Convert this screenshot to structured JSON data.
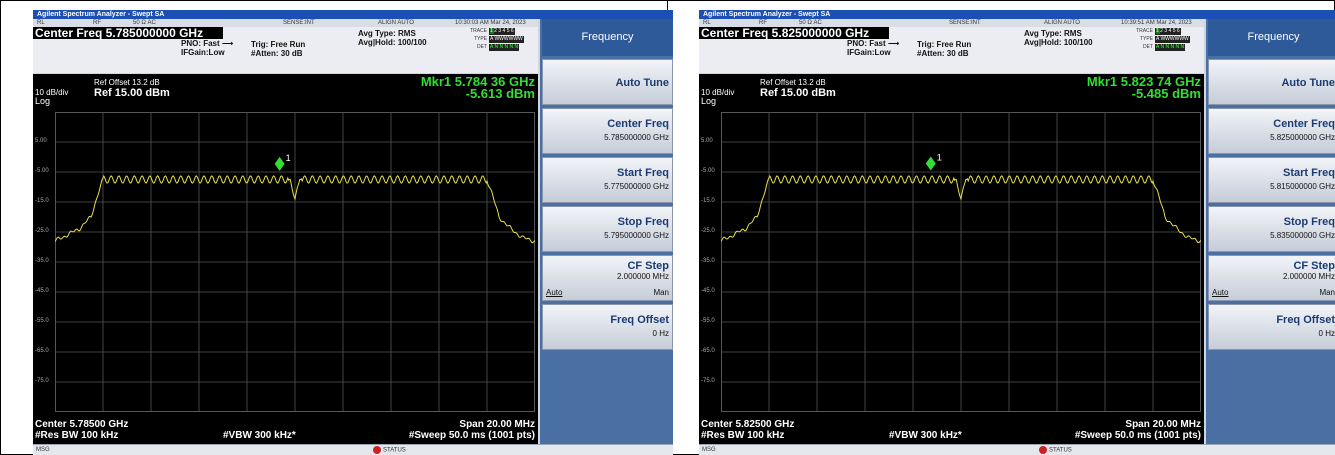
{
  "colors": {
    "trace": "#e8e04a",
    "marker": "#33dd33",
    "grid": "#555555",
    "screen_bg": "#000000"
  },
  "chart_scale": {
    "ref_level_dbm": 15,
    "db_per_div": 10,
    "divisions": 10
  },
  "panels": [
    {
      "window_title": "Agilent Spectrum Analyzer - Swept SA",
      "toolbar": {
        "rl": "RL",
        "rf": "RF",
        "impedance": "50 Ω AC",
        "sense": "SENSE:INT",
        "align": "ALIGN AUTO",
        "timestamp": "10:30:03 AM Mar 24, 2023"
      },
      "center_freq_label": "Center Freq 5.785000000 GHz",
      "pno": "PNO: Fast ⟶",
      "ifgain": "IFGain:Low",
      "trig": "Trig: Free Run",
      "atten": "#Atten: 30 dB",
      "avg_type": "Avg Type: RMS",
      "avg_hold": "Avg|Hold: 100/100",
      "trace_label": "TRACE",
      "type_label": "TYPE",
      "det_label": "DET",
      "trace_nums": [
        "1",
        "2",
        "3",
        "4",
        "5",
        "6"
      ],
      "det_vals": "A N N N N N",
      "type_vals": "A WWWWWW",
      "ref_offset": "Ref Offset 13.2 dB",
      "db_div": "10 dB/div",
      "ref_level": "Ref 15.00 dBm",
      "log": "Log",
      "marker_freq": "Mkr1 5.784 36 GHz",
      "marker_level": "-5.613 dBm",
      "y_labels": [
        "5.00",
        "-5.00",
        "-15.0",
        "-25.0",
        "-35.0",
        "-45.0",
        "-55.0",
        "-65.0",
        "-75.0"
      ],
      "center_bottom": "Center 5.78500 GHz",
      "span": "Span 20.00 MHz",
      "res_bw": "#Res BW 100 kHz",
      "vbw": "#VBW 300 kHz*",
      "sweep": "#Sweep  50.0 ms (1001 pts)",
      "status_msg": "MSG",
      "status_label": "STATUS",
      "softkeys": {
        "title": "Frequency",
        "auto_tune": "Auto Tune",
        "center_freq": {
          "name": "Center Freq",
          "value": "5.785000000 GHz"
        },
        "start_freq": {
          "name": "Start Freq",
          "value": "5.775000000 GHz"
        },
        "stop_freq": {
          "name": "Stop Freq",
          "value": "5.795000000 GHz"
        },
        "cf_step": {
          "name": "CF Step",
          "value": "2.000000 MHz",
          "auto": "Auto",
          "man": "Man"
        },
        "freq_offset": {
          "name": "Freq Offset",
          "value": "0 Hz"
        }
      },
      "chart_data": {
        "type": "line",
        "x_range_mhz_offset": [
          -10,
          10
        ],
        "ylim": [
          -85,
          15
        ],
        "marker": {
          "label": "1",
          "x": -0.64,
          "y": -5.613
        },
        "trace_points": [
          [
            -10,
            -28
          ],
          [
            -9.5,
            -26
          ],
          [
            -9,
            -24
          ],
          [
            -8.5,
            -20
          ],
          [
            -8.2,
            -12
          ],
          [
            -8,
            -7.5
          ],
          [
            -4.5,
            -7.5
          ],
          [
            -0.2,
            -7.5
          ],
          [
            0,
            -14
          ],
          [
            0.2,
            -7.5
          ],
          [
            4,
            -7.5
          ],
          [
            8,
            -7.5
          ],
          [
            8.2,
            -12
          ],
          [
            8.5,
            -20
          ],
          [
            9,
            -24
          ],
          [
            9.5,
            -27
          ],
          [
            10,
            -28
          ]
        ]
      }
    },
    {
      "window_title": "Agilent Spectrum Analyzer - Swept SA",
      "toolbar": {
        "rl": "RL",
        "rf": "RF",
        "impedance": "50 Ω AC",
        "sense": "SENSE:INT",
        "align": "ALIGN AUTO",
        "timestamp": "10:39:51 AM Mar 24, 2023"
      },
      "center_freq_label": "Center Freq 5.825000000 GHz",
      "pno": "PNO: Fast ⟶",
      "ifgain": "IFGain:Low",
      "trig": "Trig: Free Run",
      "atten": "#Atten: 30 dB",
      "avg_type": "Avg Type: RMS",
      "avg_hold": "Avg|Hold: 100/100",
      "trace_label": "TRACE",
      "type_label": "TYPE",
      "det_label": "DET",
      "trace_nums": [
        "1",
        "2",
        "3",
        "4",
        "5",
        "6"
      ],
      "det_vals": "A N N N N N",
      "type_vals": "A WWWWWW",
      "ref_offset": "Ref Offset 13.2 dB",
      "db_div": "10 dB/div",
      "ref_level": "Ref 15.00 dBm",
      "log": "Log",
      "marker_freq": "Mkr1 5.823 74 GHz",
      "marker_level": "-5.485 dBm",
      "y_labels": [
        "5.00",
        "-5.00",
        "-15.0",
        "-25.0",
        "-35.0",
        "-45.0",
        "-55.0",
        "-65.0",
        "-75.0"
      ],
      "center_bottom": "Center 5.82500 GHz",
      "span": "Span 20.00 MHz",
      "res_bw": "#Res BW 100 kHz",
      "vbw": "#VBW 300 kHz*",
      "sweep": "#Sweep  50.0 ms (1001 pts)",
      "status_msg": "MSG",
      "status_label": "STATUS",
      "softkeys": {
        "title": "Frequency",
        "auto_tune": "Auto Tune",
        "center_freq": {
          "name": "Center Freq",
          "value": "5.825000000 GHz"
        },
        "start_freq": {
          "name": "Start Freq",
          "value": "5.815000000 GHz"
        },
        "stop_freq": {
          "name": "Stop Freq",
          "value": "5.835000000 GHz"
        },
        "cf_step": {
          "name": "CF Step",
          "value": "2.000000 MHz",
          "auto": "Auto",
          "man": "Man"
        },
        "freq_offset": {
          "name": "Freq Offset",
          "value": "0 Hz"
        }
      },
      "chart_data": {
        "type": "line",
        "x_range_mhz_offset": [
          -10,
          10
        ],
        "ylim": [
          -85,
          15
        ],
        "marker": {
          "label": "1",
          "x": -1.26,
          "y": -5.485
        },
        "trace_points": [
          [
            -10,
            -28
          ],
          [
            -9.5,
            -26
          ],
          [
            -9,
            -24
          ],
          [
            -8.5,
            -20
          ],
          [
            -8.2,
            -12
          ],
          [
            -8,
            -7.5
          ],
          [
            -4.5,
            -7.5
          ],
          [
            -0.2,
            -7.5
          ],
          [
            0,
            -14
          ],
          [
            0.2,
            -7.5
          ],
          [
            4,
            -7.5
          ],
          [
            8,
            -7.5
          ],
          [
            8.2,
            -12
          ],
          [
            8.5,
            -20
          ],
          [
            9,
            -24
          ],
          [
            9.5,
            -27
          ],
          [
            10,
            -28
          ]
        ]
      }
    }
  ]
}
